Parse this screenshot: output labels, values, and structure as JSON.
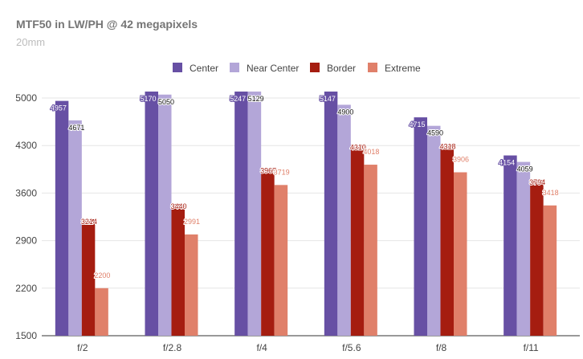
{
  "chart_data": {
    "type": "bar",
    "title": "MTF50 in LW/PH @ 42 megapixels",
    "subtitle": "20mm",
    "categories": [
      "f/2",
      "f/2.8",
      "f/4",
      "f/5.6",
      "f/8",
      "f/11"
    ],
    "series": [
      {
        "name": "Center",
        "color": "#6750a4",
        "values": [
          4957,
          5170,
          5247,
          5147,
          4715,
          4154
        ]
      },
      {
        "name": "Near Center",
        "color": "#b3a6d8",
        "values": [
          4671,
          5050,
          5129,
          4900,
          4590,
          4059
        ]
      },
      {
        "name": "Border",
        "color": "#a51d10",
        "values": [
          3214,
          3440,
          3967,
          4310,
          4318,
          3794
        ]
      },
      {
        "name": "Extreme",
        "color": "#e0806a",
        "values": [
          2200,
          2991,
          3719,
          4018,
          3906,
          3418
        ]
      }
    ],
    "ylim": [
      1500,
      5000
    ],
    "yticks": [
      1500,
      2200,
      2900,
      3600,
      4300,
      5000
    ],
    "grid": true,
    "legend_position": "top"
  }
}
